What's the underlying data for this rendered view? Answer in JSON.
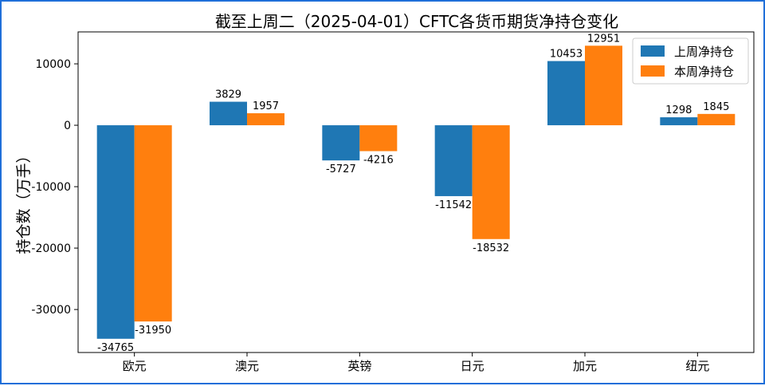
{
  "chart_data": {
    "type": "bar",
    "title": "截至上周二（2025-04-01）CFTC各货币期货净持仓变化",
    "xlabel": "",
    "ylabel": "持仓数（万手）",
    "categories": [
      "欧元",
      "澳元",
      "英镑",
      "日元",
      "加元",
      "纽元"
    ],
    "series": [
      {
        "name": "上周净持仓",
        "values": [
          -34765,
          3829,
          -5727,
          -11542,
          10453,
          1298
        ],
        "color": "#1f77b4"
      },
      {
        "name": "本周净持仓",
        "values": [
          -31950,
          1957,
          -4216,
          -18532,
          12951,
          1845
        ],
        "color": "#ff7f0e"
      }
    ],
    "yticks": [
      -30000,
      -20000,
      -10000,
      0,
      10000
    ],
    "ylim": [
      -37000,
      15200
    ],
    "legend": "top-right",
    "grid": false
  }
}
